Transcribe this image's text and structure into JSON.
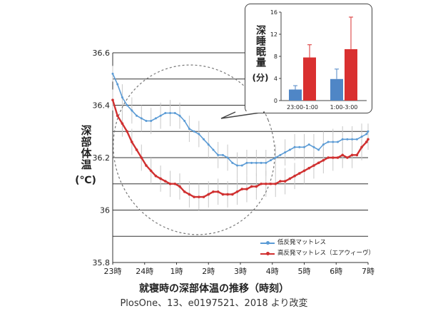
{
  "chart_data": [
    {
      "type": "line",
      "title": "就寝時の深部体温の推移（時刻）",
      "ylabel": "深部体温",
      "yunit": "(℃)",
      "ylim": [
        35.8,
        36.6
      ],
      "ytick_labels": [
        "36.6",
        "36.4",
        "36.2",
        "36",
        "35.8"
      ],
      "ytick_values": [
        36.6,
        36.4,
        36.2,
        36.0,
        35.8
      ],
      "xlim": [
        0,
        8
      ],
      "xtick_labels": [
        "23時",
        "24時",
        "1時",
        "2時",
        "3時",
        "4時",
        "5時",
        "6時",
        "7時"
      ],
      "grid": true,
      "legend_position": "bottom-right",
      "series": [
        {
          "name": "低反発マットレス",
          "color": "#5b9bd5",
          "x": [
            0,
            0.15,
            0.3,
            0.45,
            0.6,
            0.75,
            0.9,
            1.05,
            1.2,
            1.35,
            1.5,
            1.65,
            1.8,
            1.95,
            2.1,
            2.25,
            2.4,
            2.55,
            2.7,
            2.85,
            3.0,
            3.15,
            3.3,
            3.45,
            3.6,
            3.75,
            3.9,
            4.05,
            4.2,
            4.35,
            4.5,
            4.65,
            4.8,
            4.95,
            5.1,
            5.25,
            5.4,
            5.55,
            5.7,
            5.85,
            6.0,
            6.15,
            6.3,
            6.45,
            6.6,
            6.75,
            6.9,
            7.05,
            7.2,
            7.35,
            7.5,
            7.65,
            7.8,
            7.95,
            8.0
          ],
          "y": [
            36.52,
            36.48,
            36.43,
            36.4,
            36.38,
            36.36,
            36.35,
            36.34,
            36.34,
            36.35,
            36.36,
            36.37,
            36.37,
            36.37,
            36.36,
            36.34,
            36.31,
            36.3,
            36.29,
            36.27,
            36.25,
            36.23,
            36.21,
            36.21,
            36.2,
            36.18,
            36.17,
            36.17,
            36.18,
            36.18,
            36.18,
            36.18,
            36.18,
            36.19,
            36.2,
            36.21,
            36.22,
            36.23,
            36.24,
            36.24,
            36.24,
            36.25,
            36.24,
            36.23,
            36.25,
            36.26,
            36.26,
            36.26,
            36.27,
            36.27,
            36.27,
            36.27,
            36.28,
            36.29,
            36.3
          ],
          "error": [
            0.03,
            0.05,
            0.05,
            0.05,
            0.05,
            0.05,
            0.05,
            0.05,
            0.05,
            0.05,
            0.05,
            0.05,
            0.05,
            0.05,
            0.05,
            0.05,
            0.05,
            0.05,
            0.05,
            0.05,
            0.05,
            0.05,
            0.05,
            0.05,
            0.05,
            0.05,
            0.05,
            0.05,
            0.05,
            0.05,
            0.05,
            0.05,
            0.05,
            0.05,
            0.05,
            0.05,
            0.05,
            0.05,
            0.05,
            0.05,
            0.05,
            0.05,
            0.05,
            0.05,
            0.05,
            0.05,
            0.05,
            0.05,
            0.05,
            0.05,
            0.05,
            0.05,
            0.05,
            0.05,
            0.03
          ]
        },
        {
          "name": "高反発マットレス（エアウィーヴ）",
          "color": "#d03030",
          "x": [
            0,
            0.15,
            0.3,
            0.45,
            0.6,
            0.75,
            0.9,
            1.05,
            1.2,
            1.35,
            1.5,
            1.65,
            1.8,
            1.95,
            2.1,
            2.25,
            2.4,
            2.55,
            2.7,
            2.85,
            3.0,
            3.15,
            3.3,
            3.45,
            3.6,
            3.75,
            3.9,
            4.05,
            4.2,
            4.35,
            4.5,
            4.65,
            4.8,
            4.95,
            5.1,
            5.25,
            5.4,
            5.55,
            5.7,
            5.85,
            6.0,
            6.15,
            6.3,
            6.45,
            6.6,
            6.75,
            6.9,
            7.05,
            7.2,
            7.35,
            7.5,
            7.65,
            7.8,
            7.95,
            8.0
          ],
          "y": [
            36.42,
            36.36,
            36.33,
            36.3,
            36.26,
            36.23,
            36.2,
            36.17,
            36.15,
            36.13,
            36.12,
            36.11,
            36.1,
            36.1,
            36.09,
            36.07,
            36.06,
            36.05,
            36.05,
            36.05,
            36.06,
            36.07,
            36.07,
            36.06,
            36.06,
            36.06,
            36.07,
            36.08,
            36.08,
            36.09,
            36.09,
            36.1,
            36.1,
            36.1,
            36.1,
            36.11,
            36.11,
            36.12,
            36.13,
            36.14,
            36.15,
            36.16,
            36.17,
            36.18,
            36.19,
            36.2,
            36.2,
            36.2,
            36.21,
            36.2,
            36.21,
            36.21,
            36.24,
            36.26,
            36.27
          ],
          "error": [
            0.04,
            0.05,
            0.05,
            0.05,
            0.05,
            0.05,
            0.05,
            0.05,
            0.05,
            0.05,
            0.05,
            0.05,
            0.05,
            0.05,
            0.05,
            0.05,
            0.05,
            0.05,
            0.05,
            0.05,
            0.05,
            0.05,
            0.05,
            0.05,
            0.05,
            0.05,
            0.05,
            0.05,
            0.05,
            0.05,
            0.05,
            0.05,
            0.05,
            0.05,
            0.05,
            0.05,
            0.05,
            0.05,
            0.05,
            0.05,
            0.05,
            0.05,
            0.05,
            0.05,
            0.05,
            0.05,
            0.05,
            0.05,
            0.05,
            0.05,
            0.05,
            0.05,
            0.05,
            0.05,
            0.04
          ]
        }
      ],
      "annotation": "dashed ellipse highlighting 23時–4時 period, with callout to inset chart"
    },
    {
      "type": "bar",
      "ylabel": "深睡眠量",
      "yunit": "(分)",
      "ylim": [
        0,
        16
      ],
      "ytick_labels": [
        "0",
        "4",
        "8",
        "12",
        "16"
      ],
      "ytick_values": [
        0,
        4,
        8,
        12,
        16
      ],
      "categories": [
        "23:00-1:00",
        "1:00-3:00"
      ],
      "series": [
        {
          "color": "#4f86c6",
          "values": [
            2.0,
            3.9
          ],
          "error": [
            0.7,
            1.8
          ]
        },
        {
          "color": "#d93030",
          "values": [
            7.8,
            9.3
          ],
          "error": [
            2.3,
            5.8
          ]
        }
      ]
    }
  ],
  "labels": {
    "ylabel_main": "深部体温",
    "ylabel_unit": "(℃)",
    "x_title": "就寝時の深部体温の推移（時刻）",
    "source": "PlosOne、13、e0197521、2018 より改変",
    "inset_ylabel": "深睡眠量",
    "inset_yunit": "(分)",
    "legend_low": "低反発マットレス",
    "legend_high": "高反発マットレス（エアウィーヴ）"
  }
}
